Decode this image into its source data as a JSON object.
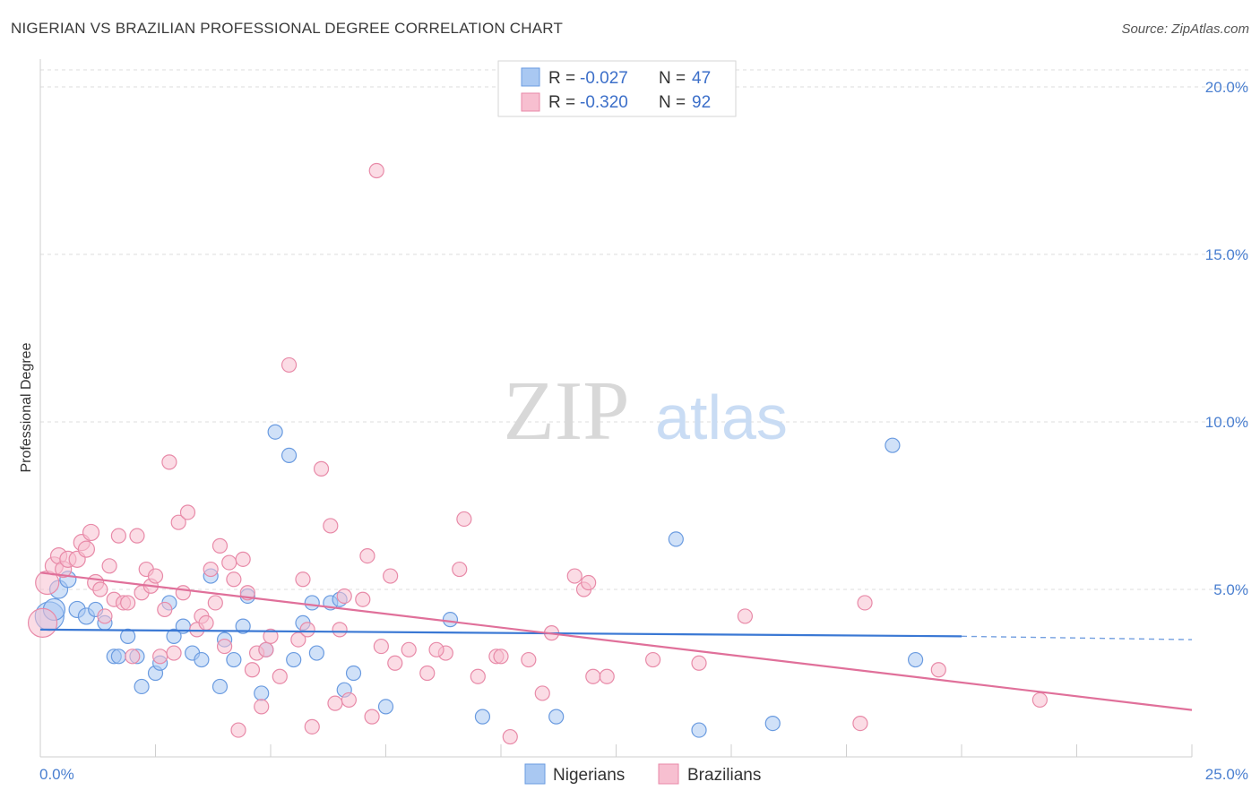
{
  "title": "NIGERIAN VS BRAZILIAN PROFESSIONAL DEGREE CORRELATION CHART",
  "source": "Source: ZipAtlas.com",
  "watermark": {
    "zip": "ZIP",
    "atlas": "atlas"
  },
  "legend": {
    "rows": [
      {
        "r_label": "R =",
        "r_value": "-0.027",
        "n_label": "N =",
        "n_value": "47",
        "color": "#a9c8f2",
        "stroke": "#6a9be0"
      },
      {
        "r_label": "R =",
        "r_value": "-0.320",
        "n_label": "N =",
        "n_value": "92",
        "color": "#f7bfd0",
        "stroke": "#e88aa8"
      }
    ]
  },
  "bottom_legend": [
    {
      "label": "Nigerians",
      "color": "#a9c8f2",
      "stroke": "#6a9be0"
    },
    {
      "label": "Brazilians",
      "color": "#f7bfd0",
      "stroke": "#e88aa8"
    }
  ],
  "chart_data": {
    "type": "scatter",
    "title": "NIGERIAN VS BRAZILIAN PROFESSIONAL DEGREE CORRELATION CHART",
    "xlabel": "",
    "ylabel": "Professional Degree",
    "xlim": [
      0,
      25
    ],
    "ylim": [
      0,
      20.5
    ],
    "x_ticks": [
      {
        "value": 0,
        "label": "0.0%"
      },
      {
        "value": 25,
        "label": "25.0%"
      }
    ],
    "y_ticks": [
      {
        "value": 5,
        "label": "5.0%"
      },
      {
        "value": 10,
        "label": "10.0%"
      },
      {
        "value": 15,
        "label": "15.0%"
      },
      {
        "value": 20,
        "label": "20.0%"
      }
    ],
    "grid": "horizontal dashed",
    "legend_position": "top-center",
    "series": [
      {
        "name": "Nigerians",
        "color": "#6a9be0",
        "fill": "#a9c8f2",
        "trend": {
          "x0": 0,
          "y0": 3.8,
          "x1": 20,
          "y1": 3.6,
          "dashed_to": 25,
          "dashed_y": 3.5,
          "color": "#3a78d4"
        },
        "points": [
          [
            0.2,
            4.2,
            16
          ],
          [
            0.3,
            4.4,
            12
          ],
          [
            0.4,
            5.0,
            10
          ],
          [
            0.6,
            5.3,
            9
          ],
          [
            0.8,
            4.4,
            9
          ],
          [
            1.0,
            4.2,
            9
          ],
          [
            1.2,
            4.4,
            8
          ],
          [
            1.4,
            4.0,
            8
          ],
          [
            1.6,
            3.0,
            8
          ],
          [
            1.7,
            3.0,
            8
          ],
          [
            1.9,
            3.6,
            8
          ],
          [
            2.1,
            3.0,
            8
          ],
          [
            2.2,
            2.1,
            8
          ],
          [
            2.5,
            2.5,
            8
          ],
          [
            2.6,
            2.8,
            8
          ],
          [
            2.8,
            4.6,
            8
          ],
          [
            2.9,
            3.6,
            8
          ],
          [
            3.1,
            3.9,
            8
          ],
          [
            3.3,
            3.1,
            8
          ],
          [
            3.5,
            2.9,
            8
          ],
          [
            3.7,
            5.4,
            8
          ],
          [
            3.9,
            2.1,
            8
          ],
          [
            4.0,
            3.5,
            8
          ],
          [
            4.2,
            2.9,
            8
          ],
          [
            4.4,
            3.9,
            8
          ],
          [
            4.5,
            4.8,
            8
          ],
          [
            4.8,
            1.9,
            8
          ],
          [
            4.9,
            3.2,
            8
          ],
          [
            5.1,
            9.7,
            8
          ],
          [
            5.4,
            9.0,
            8
          ],
          [
            5.5,
            2.9,
            8
          ],
          [
            5.7,
            4.0,
            8
          ],
          [
            5.9,
            4.6,
            8
          ],
          [
            6.0,
            3.1,
            8
          ],
          [
            6.3,
            4.6,
            8
          ],
          [
            6.5,
            4.7,
            8
          ],
          [
            6.6,
            2.0,
            8
          ],
          [
            6.8,
            2.5,
            8
          ],
          [
            7.5,
            1.5,
            8
          ],
          [
            8.9,
            4.1,
            8
          ],
          [
            9.6,
            1.2,
            8
          ],
          [
            11.2,
            1.2,
            8
          ],
          [
            13.8,
            6.5,
            8
          ],
          [
            14.3,
            0.8,
            8
          ],
          [
            15.9,
            1.0,
            8
          ],
          [
            18.5,
            9.3,
            8
          ],
          [
            19.0,
            2.9,
            8
          ]
        ]
      },
      {
        "name": "Brazilians",
        "color": "#e88aa8",
        "fill": "#f7bfd0",
        "trend": {
          "x0": 0,
          "y0": 5.5,
          "x1": 25,
          "y1": 1.4,
          "color": "#e0709a"
        },
        "points": [
          [
            0.05,
            4.0,
            16
          ],
          [
            0.15,
            5.2,
            13
          ],
          [
            0.3,
            5.7,
            10
          ],
          [
            0.4,
            6.0,
            9
          ],
          [
            0.5,
            5.6,
            9
          ],
          [
            0.6,
            5.9,
            9
          ],
          [
            0.8,
            5.9,
            9
          ],
          [
            0.9,
            6.4,
            9
          ],
          [
            1.0,
            6.2,
            9
          ],
          [
            1.1,
            6.7,
            9
          ],
          [
            1.2,
            5.2,
            9
          ],
          [
            1.3,
            5.0,
            8
          ],
          [
            1.4,
            4.2,
            8
          ],
          [
            1.5,
            5.7,
            8
          ],
          [
            1.6,
            4.7,
            8
          ],
          [
            1.7,
            6.6,
            8
          ],
          [
            1.8,
            4.6,
            8
          ],
          [
            1.9,
            4.6,
            8
          ],
          [
            2.0,
            3.0,
            8
          ],
          [
            2.1,
            6.6,
            8
          ],
          [
            2.2,
            4.9,
            8
          ],
          [
            2.3,
            5.6,
            8
          ],
          [
            2.4,
            5.1,
            8
          ],
          [
            2.5,
            5.4,
            8
          ],
          [
            2.6,
            3.0,
            8
          ],
          [
            2.7,
            4.4,
            8
          ],
          [
            2.8,
            8.8,
            8
          ],
          [
            2.9,
            3.1,
            8
          ],
          [
            3.0,
            7.0,
            8
          ],
          [
            3.1,
            4.9,
            8
          ],
          [
            3.2,
            7.3,
            8
          ],
          [
            3.4,
            3.8,
            8
          ],
          [
            3.5,
            4.2,
            8
          ],
          [
            3.6,
            4.0,
            8
          ],
          [
            3.7,
            5.6,
            8
          ],
          [
            3.8,
            4.6,
            8
          ],
          [
            3.9,
            6.3,
            8
          ],
          [
            4.0,
            3.3,
            8
          ],
          [
            4.1,
            5.8,
            8
          ],
          [
            4.2,
            5.3,
            8
          ],
          [
            4.3,
            0.8,
            8
          ],
          [
            4.4,
            5.9,
            8
          ],
          [
            4.5,
            4.9,
            8
          ],
          [
            4.6,
            2.6,
            8
          ],
          [
            4.7,
            3.1,
            8
          ],
          [
            4.8,
            1.5,
            8
          ],
          [
            4.9,
            3.2,
            8
          ],
          [
            5.0,
            3.6,
            8
          ],
          [
            5.2,
            2.4,
            8
          ],
          [
            5.4,
            11.7,
            8
          ],
          [
            5.6,
            3.5,
            8
          ],
          [
            5.7,
            5.3,
            8
          ],
          [
            5.8,
            3.8,
            8
          ],
          [
            5.9,
            0.9,
            8
          ],
          [
            6.1,
            8.6,
            8
          ],
          [
            6.3,
            6.9,
            8
          ],
          [
            6.4,
            1.6,
            8
          ],
          [
            6.5,
            3.8,
            8
          ],
          [
            6.6,
            4.8,
            8
          ],
          [
            6.7,
            1.7,
            8
          ],
          [
            7.0,
            4.7,
            8
          ],
          [
            7.1,
            6.0,
            8
          ],
          [
            7.2,
            1.2,
            8
          ],
          [
            7.3,
            17.5,
            8
          ],
          [
            7.4,
            3.3,
            8
          ],
          [
            7.6,
            5.4,
            8
          ],
          [
            7.7,
            2.8,
            8
          ],
          [
            8.0,
            3.2,
            8
          ],
          [
            8.4,
            2.5,
            8
          ],
          [
            8.8,
            3.1,
            8
          ],
          [
            9.1,
            5.6,
            8
          ],
          [
            9.2,
            7.1,
            8
          ],
          [
            9.5,
            2.4,
            8
          ],
          [
            9.9,
            3.0,
            8
          ],
          [
            10.2,
            0.6,
            8
          ],
          [
            10.6,
            2.9,
            8
          ],
          [
            10.9,
            1.9,
            8
          ],
          [
            11.1,
            3.7,
            8
          ],
          [
            11.6,
            5.4,
            8
          ],
          [
            11.8,
            5.0,
            8
          ],
          [
            11.9,
            5.2,
            8
          ],
          [
            12.0,
            2.4,
            8
          ],
          [
            12.3,
            2.4,
            8
          ],
          [
            13.3,
            2.9,
            8
          ],
          [
            14.3,
            2.8,
            8
          ],
          [
            15.3,
            4.2,
            8
          ],
          [
            17.8,
            1.0,
            8
          ],
          [
            17.9,
            4.6,
            8
          ],
          [
            19.5,
            2.6,
            8
          ],
          [
            21.7,
            1.7,
            8
          ],
          [
            10.0,
            3.0,
            8
          ],
          [
            8.6,
            3.2,
            8
          ]
        ]
      }
    ]
  }
}
